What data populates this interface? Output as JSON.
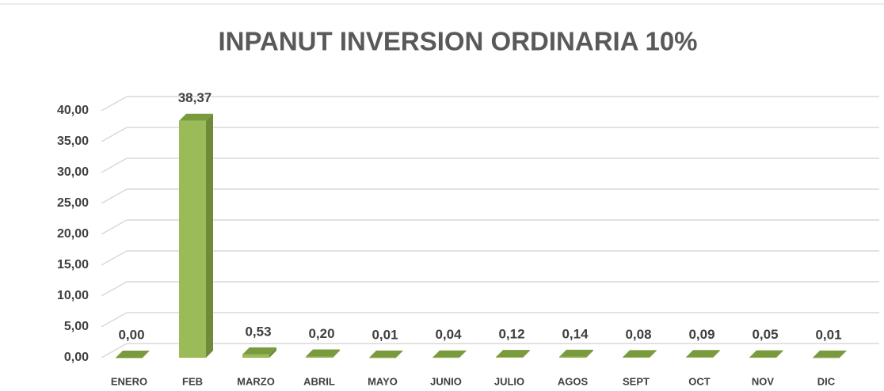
{
  "chart_data": {
    "type": "bar3d",
    "title": "INPANUT INVERSION ORDINARIA 10%",
    "categories": [
      "ENERO",
      "FEB",
      "MARZO",
      "ABRIL",
      "MAYO",
      "JUNIO",
      "JULIO",
      "AGOS",
      "SEPT",
      "OCT",
      "NOV",
      "DIC"
    ],
    "values": [
      0.0,
      38.37,
      0.53,
      0.2,
      0.01,
      0.04,
      0.12,
      0.14,
      0.08,
      0.09,
      0.05,
      0.01
    ],
    "value_labels": [
      "0,00",
      "38,37",
      "0,53",
      "0,20",
      "0,01",
      "0,04",
      "0,12",
      "0,14",
      "0,08",
      "0,09",
      "0,05",
      "0,01"
    ],
    "color": "#9bbb59",
    "ylim": [
      0,
      40
    ],
    "yticks": [
      {
        "value": 0,
        "label": "0,00"
      },
      {
        "value": 5,
        "label": "5,00"
      },
      {
        "value": 10,
        "label": "10,00"
      },
      {
        "value": 15,
        "label": "15,00"
      },
      {
        "value": 20,
        "label": "20,00"
      },
      {
        "value": 25,
        "label": "25,00"
      },
      {
        "value": 30,
        "label": "30,00"
      },
      {
        "value": 35,
        "label": "35,00"
      },
      {
        "value": 40,
        "label": "40,00"
      }
    ],
    "grid": true
  }
}
